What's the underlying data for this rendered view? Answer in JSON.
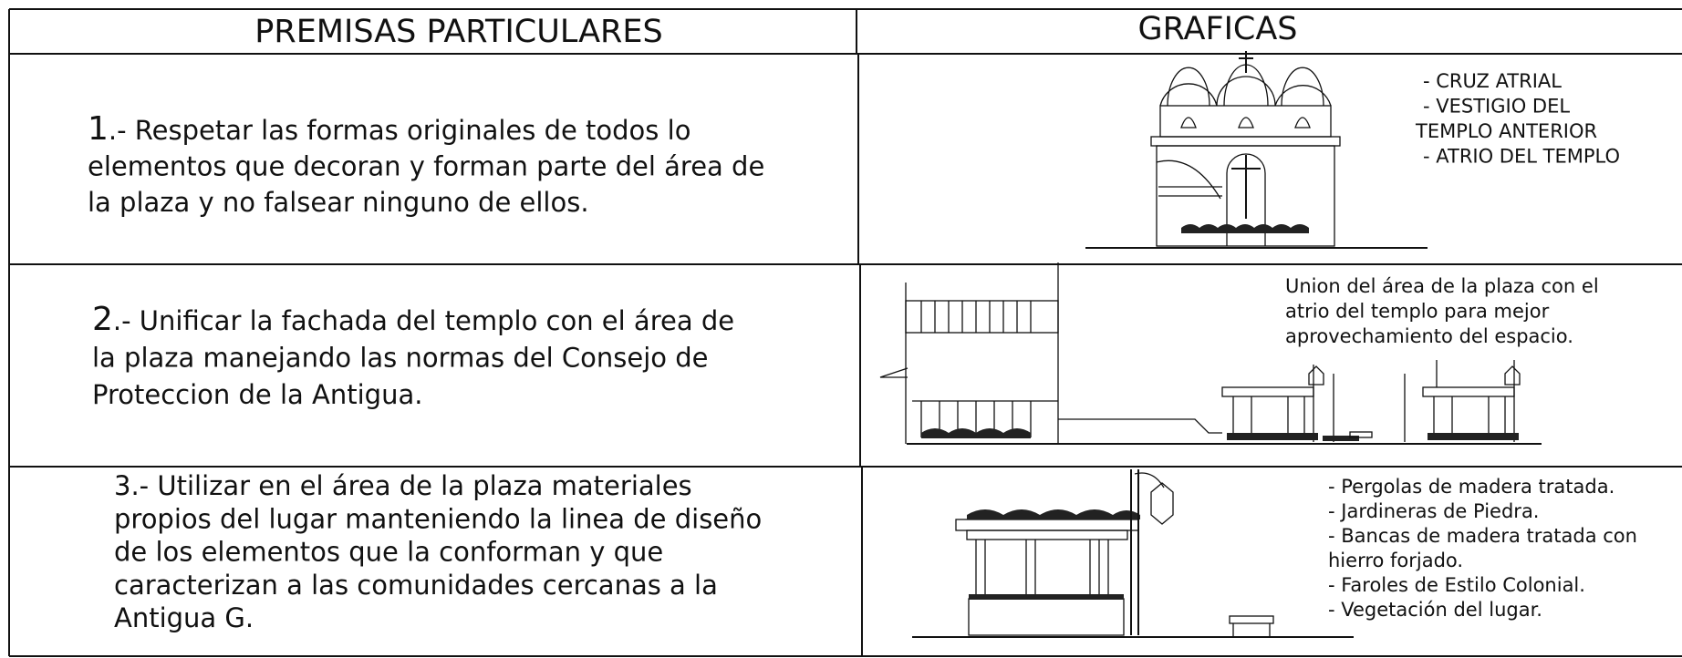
{
  "header": {
    "columns": [
      "PREMISAS PARTICULARES",
      "GRAFICAS"
    ]
  },
  "rows": [
    {
      "marker": "1",
      "text_lines": [
        ".-  Respetar las formas originales de todos lo",
        "elementos que decoran y forman parte del área de",
        "la plaza y no falsear ninguno de ellos."
      ],
      "notes": [
        "-  CRUZ ATRIAL",
        "-  VESTIGIO DEL",
        "TEMPLO ANTERIOR",
        "-  ATRIO DEL TEMPLO"
      ]
    },
    {
      "marker": "2",
      "text_lines": [
        ".-  Unificar la fachada del templo con el área de",
        "la plaza manejando las normas del Consejo de",
        "Proteccion de la Antigua."
      ],
      "notes": [
        "Union del área de la plaza con el",
        "atrio del templo para mejor",
        "aprovechamiento del espacio."
      ]
    },
    {
      "marker": "3",
      "text_lines": [
        ".-  Utilizar en el área de la plaza materiales",
        "propios del lugar manteniendo la linea de diseño",
        "de los elementos que la conforman y que",
        "caracterizan a las comunidades cercanas a la",
        "Antigua G."
      ],
      "notes": [
        "- Pergolas de madera tratada.",
        "- Jardineras de Piedra.",
        "- Bancas de madera tratada con",
        "hierro forjado.",
        "- Faroles de Estilo Colonial.",
        "- Vegetación del lugar."
      ]
    }
  ]
}
